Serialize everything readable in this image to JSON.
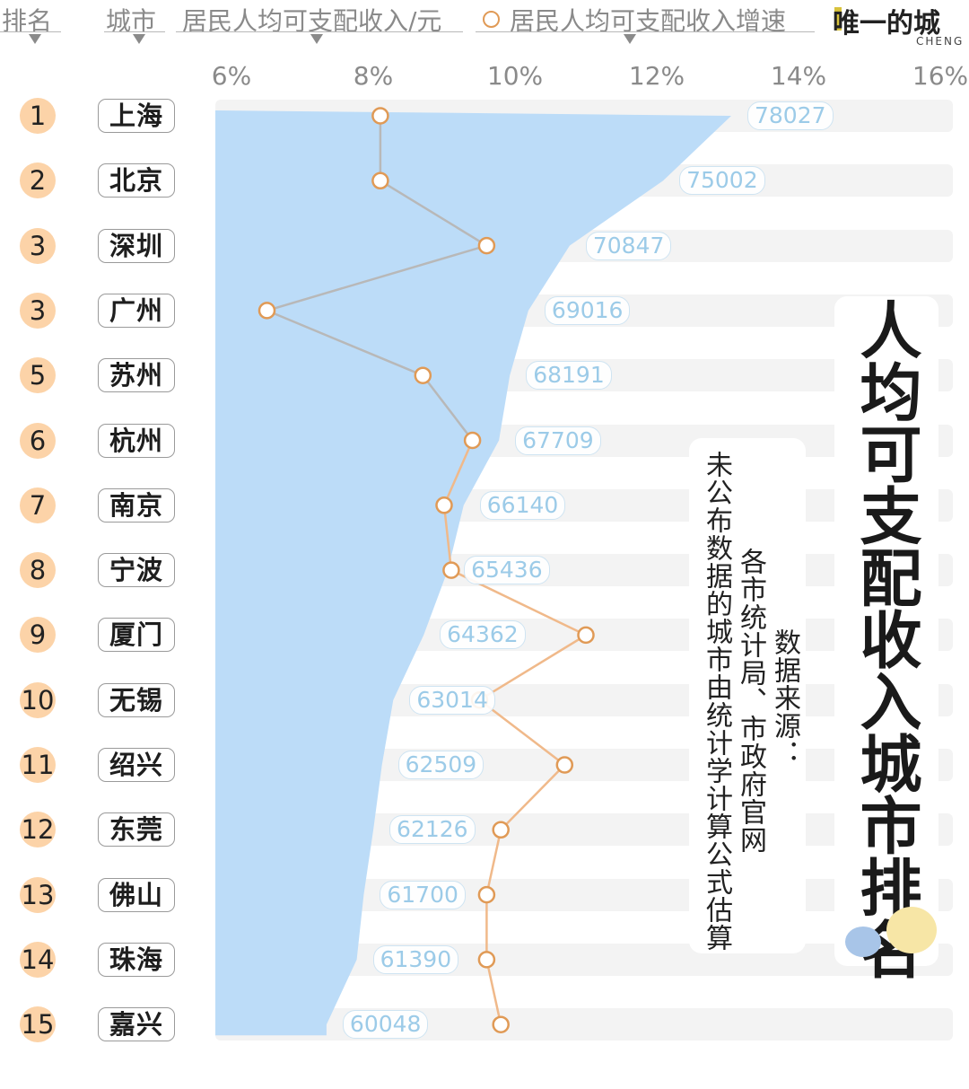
{
  "header": {
    "rank_label": "排名",
    "city_label": "城市",
    "income_label": "居民人均可支配收入/元",
    "growth_label": "居民人均可支配收入增速",
    "brand": "唯一的城",
    "brand_sub": "CHENG"
  },
  "title": "人均可支配收入城市排名",
  "source": {
    "line1": "数据来源：",
    "line2": "各市统计局、市政府官网",
    "line3": "未公布数据的城市由统计学计算公式估算"
  },
  "colors": {
    "area": "#bcdcf8",
    "growth_upper": "#b8b8b8",
    "growth_lower": "#f0b98a",
    "marker": "#e09a56",
    "rank_circle": "#fcd3a8"
  },
  "chart_data": {
    "type": "area",
    "title": "人均可支配收入城市排名",
    "ranks": [
      "1",
      "2",
      "3",
      "3",
      "5",
      "6",
      "7",
      "8",
      "9",
      "10",
      "11",
      "12",
      "13",
      "14",
      "15"
    ],
    "categories": [
      "上海",
      "北京",
      "深圳",
      "广州",
      "苏州",
      "杭州",
      "南京",
      "宁波",
      "厦门",
      "无锡",
      "绍兴",
      "东莞",
      "佛山",
      "珠海",
      "嘉兴"
    ],
    "series": [
      {
        "name": "居民人均可支配收入/元",
        "values": [
          78027,
          75002,
          70847,
          69016,
          68191,
          67709,
          66140,
          65436,
          64362,
          63014,
          62509,
          62126,
          61700,
          61390,
          60048
        ]
      },
      {
        "name": "居民人均可支配收入增速",
        "values": [
          8.1,
          8.1,
          9.6,
          6.5,
          8.7,
          9.4,
          9.0,
          9.1,
          11.0,
          9.5,
          10.7,
          9.8,
          9.6,
          9.6,
          9.8
        ]
      }
    ],
    "x_ticks": [
      "6%",
      "8%",
      "10%",
      "12%",
      "14%",
      "16%"
    ],
    "xlim": [
      6,
      16
    ]
  }
}
